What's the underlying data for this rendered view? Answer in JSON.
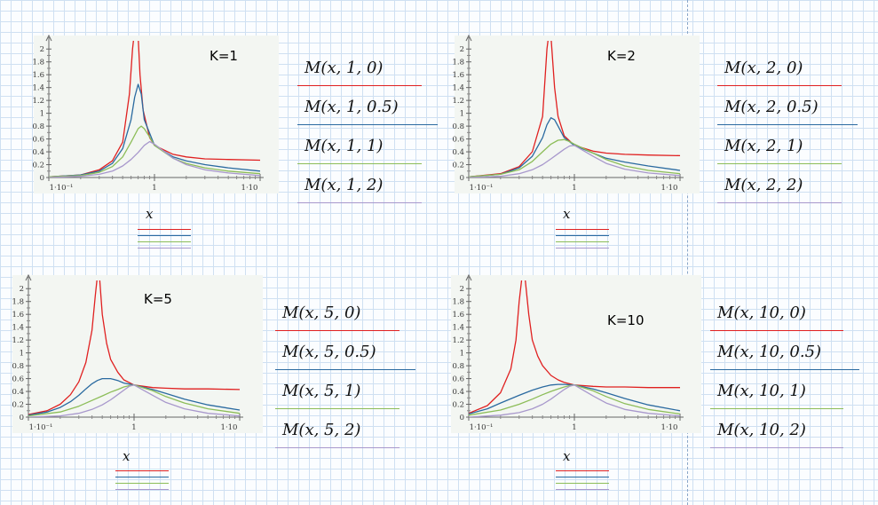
{
  "colors": {
    "red": "#e02020",
    "blue": "#2a6aa0",
    "green": "#8cbd58",
    "purple": "#a898cc"
  },
  "chart_data": [
    {
      "type": "line",
      "annotation": "K=1",
      "x_scale": "log",
      "xlim": [
        0.1,
        10
      ],
      "ylim": [
        0,
        2.1
      ],
      "x_tick_labels": [
        "1·10⁻¹",
        "1",
        "1·10"
      ],
      "y_tick_labels": [
        "0",
        "0.2",
        "0.4",
        "0.6",
        "0.8",
        "1",
        "1.2",
        "1.4",
        "1.6",
        "1.8",
        "2"
      ],
      "xlabel": "x",
      "series": [
        {
          "name": "M(x,1,0)",
          "x": [
            0.1,
            0.2,
            0.3,
            0.4,
            0.5,
            0.58,
            0.62,
            0.64,
            0.7,
            0.73,
            0.78,
            0.9,
            1.0,
            1.5,
            2,
            3,
            5,
            10
          ],
          "y": [
            0.01,
            0.04,
            0.12,
            0.26,
            0.55,
            1.3,
            2.0,
            2.2,
            2.2,
            1.6,
            1.05,
            0.62,
            0.5,
            0.36,
            0.32,
            0.29,
            0.28,
            0.27
          ]
        },
        {
          "name": "M(x,1,0.5)",
          "x": [
            0.1,
            0.2,
            0.3,
            0.4,
            0.5,
            0.6,
            0.65,
            0.7,
            0.75,
            0.8,
            1.0,
            1.5,
            2,
            3,
            5,
            10
          ],
          "y": [
            0.01,
            0.04,
            0.1,
            0.22,
            0.45,
            0.9,
            1.25,
            1.45,
            1.3,
            0.9,
            0.5,
            0.32,
            0.26,
            0.2,
            0.15,
            0.1
          ]
        },
        {
          "name": "M(x,1,1)",
          "x": [
            0.1,
            0.2,
            0.3,
            0.4,
            0.5,
            0.6,
            0.7,
            0.75,
            0.8,
            0.9,
            1.0,
            1.5,
            2,
            3,
            5,
            10
          ],
          "y": [
            0.01,
            0.03,
            0.08,
            0.17,
            0.32,
            0.55,
            0.76,
            0.8,
            0.76,
            0.63,
            0.5,
            0.3,
            0.22,
            0.15,
            0.1,
            0.06
          ]
        },
        {
          "name": "M(x,1,2)",
          "x": [
            0.1,
            0.2,
            0.3,
            0.4,
            0.5,
            0.6,
            0.7,
            0.8,
            0.9,
            1.0,
            1.5,
            2,
            3,
            5,
            10
          ],
          "y": [
            0.0,
            0.02,
            0.05,
            0.1,
            0.18,
            0.28,
            0.39,
            0.5,
            0.56,
            0.52,
            0.3,
            0.2,
            0.12,
            0.07,
            0.03
          ]
        }
      ]
    },
    {
      "type": "line",
      "annotation": "K=2",
      "x_scale": "log",
      "xlim": [
        0.1,
        10
      ],
      "ylim": [
        0,
        2.1
      ],
      "x_tick_labels": [
        "1·10⁻¹",
        "1",
        "1·10"
      ],
      "y_tick_labels": [
        "0",
        "0.2",
        "0.4",
        "0.6",
        "0.8",
        "1",
        "1.2",
        "1.4",
        "1.6",
        "1.8",
        "2"
      ],
      "xlabel": "x",
      "series": [
        {
          "name": "M(x,2,0)",
          "x": [
            0.1,
            0.2,
            0.3,
            0.4,
            0.5,
            0.55,
            0.57,
            0.6,
            0.65,
            0.7,
            0.8,
            1.0,
            1.5,
            2,
            3,
            5,
            10
          ],
          "y": [
            0.01,
            0.06,
            0.17,
            0.4,
            0.95,
            2.0,
            2.2,
            2.2,
            1.4,
            0.95,
            0.65,
            0.5,
            0.41,
            0.38,
            0.36,
            0.35,
            0.34
          ]
        },
        {
          "name": "M(x,2,0.5)",
          "x": [
            0.1,
            0.2,
            0.3,
            0.4,
            0.5,
            0.55,
            0.6,
            0.65,
            0.7,
            0.8,
            1.0,
            1.5,
            2,
            3,
            5,
            10
          ],
          "y": [
            0.01,
            0.05,
            0.15,
            0.33,
            0.62,
            0.82,
            0.93,
            0.9,
            0.8,
            0.62,
            0.5,
            0.38,
            0.3,
            0.24,
            0.18,
            0.11
          ]
        },
        {
          "name": "M(x,2,1)",
          "x": [
            0.1,
            0.2,
            0.3,
            0.4,
            0.5,
            0.6,
            0.7,
            0.8,
            0.9,
            1.0,
            1.5,
            2,
            3,
            5,
            10
          ],
          "y": [
            0.01,
            0.05,
            0.12,
            0.25,
            0.4,
            0.52,
            0.58,
            0.59,
            0.56,
            0.52,
            0.38,
            0.28,
            0.18,
            0.11,
            0.06
          ]
        },
        {
          "name": "M(x,2,2)",
          "x": [
            0.1,
            0.2,
            0.3,
            0.4,
            0.5,
            0.6,
            0.7,
            0.8,
            0.9,
            1.0,
            1.5,
            2,
            3,
            5,
            10
          ],
          "y": [
            0.0,
            0.02,
            0.06,
            0.12,
            0.2,
            0.29,
            0.37,
            0.44,
            0.49,
            0.5,
            0.33,
            0.22,
            0.13,
            0.07,
            0.03
          ]
        }
      ]
    },
    {
      "type": "line",
      "annotation": "K=5",
      "x_scale": "log",
      "xlim": [
        0.1,
        10
      ],
      "ylim": [
        0,
        2.1
      ],
      "x_tick_labels": [
        "1·10⁻¹",
        "1",
        "1·10"
      ],
      "y_tick_labels": [
        "0",
        "0.2",
        "0.4",
        "0.6",
        "0.8",
        "1",
        "1.2",
        "1.4",
        "1.6",
        "1.8",
        "2"
      ],
      "xlabel": "x",
      "series": [
        {
          "name": "M(x,5,0)",
          "x": [
            0.1,
            0.15,
            0.2,
            0.25,
            0.3,
            0.35,
            0.4,
            0.43,
            0.45,
            0.47,
            0.5,
            0.55,
            0.6,
            0.7,
            0.8,
            1.0,
            1.5,
            2,
            3,
            5,
            10
          ],
          "y": [
            0.04,
            0.1,
            0.2,
            0.35,
            0.55,
            0.85,
            1.35,
            1.9,
            2.2,
            2.2,
            1.6,
            1.15,
            0.9,
            0.7,
            0.58,
            0.5,
            0.46,
            0.45,
            0.44,
            0.44,
            0.43
          ]
        },
        {
          "name": "M(x,5,0.5)",
          "x": [
            0.1,
            0.15,
            0.2,
            0.25,
            0.3,
            0.35,
            0.4,
            0.45,
            0.5,
            0.6,
            0.7,
            0.8,
            1.0,
            1.5,
            2,
            3,
            5,
            10
          ],
          "y": [
            0.03,
            0.08,
            0.15,
            0.24,
            0.34,
            0.44,
            0.52,
            0.57,
            0.6,
            0.6,
            0.57,
            0.53,
            0.5,
            0.43,
            0.37,
            0.28,
            0.19,
            0.11
          ]
        },
        {
          "name": "M(x,5,1)",
          "x": [
            0.1,
            0.2,
            0.3,
            0.4,
            0.5,
            0.6,
            0.7,
            0.8,
            0.9,
            1.0,
            1.5,
            2,
            3,
            5,
            10
          ],
          "y": [
            0.02,
            0.08,
            0.17,
            0.26,
            0.33,
            0.39,
            0.43,
            0.47,
            0.49,
            0.5,
            0.41,
            0.32,
            0.22,
            0.13,
            0.06
          ]
        },
        {
          "name": "M(x,5,2)",
          "x": [
            0.1,
            0.2,
            0.3,
            0.4,
            0.5,
            0.6,
            0.7,
            0.8,
            0.9,
            1.0,
            1.5,
            2,
            3,
            5,
            10
          ],
          "y": [
            0.0,
            0.02,
            0.06,
            0.12,
            0.19,
            0.27,
            0.35,
            0.42,
            0.48,
            0.5,
            0.34,
            0.23,
            0.13,
            0.06,
            0.02
          ]
        }
      ]
    },
    {
      "type": "line",
      "annotation": "K=10",
      "x_scale": "log",
      "xlim": [
        0.1,
        10
      ],
      "ylim": [
        0,
        2.1
      ],
      "x_tick_labels": [
        "1·10⁻¹",
        "1",
        "1·10"
      ],
      "y_tick_labels": [
        "0",
        "0.2",
        "0.4",
        "0.6",
        "0.8",
        "1",
        "1.2",
        "1.4",
        "1.6",
        "1.8",
        "2"
      ],
      "xlabel": "x",
      "series": [
        {
          "name": "M(x,10,0)",
          "x": [
            0.1,
            0.15,
            0.2,
            0.25,
            0.28,
            0.3,
            0.32,
            0.34,
            0.37,
            0.4,
            0.45,
            0.5,
            0.6,
            0.7,
            0.8,
            1.0,
            1.5,
            2,
            3,
            5,
            10
          ],
          "y": [
            0.06,
            0.18,
            0.38,
            0.75,
            1.2,
            1.8,
            2.2,
            2.2,
            1.6,
            1.2,
            0.95,
            0.8,
            0.65,
            0.58,
            0.54,
            0.5,
            0.48,
            0.47,
            0.47,
            0.46,
            0.46
          ]
        },
        {
          "name": "M(x,10,0.5)",
          "x": [
            0.1,
            0.15,
            0.2,
            0.3,
            0.4,
            0.5,
            0.6,
            0.7,
            0.8,
            1.0,
            1.5,
            2,
            3,
            5,
            10
          ],
          "y": [
            0.05,
            0.13,
            0.22,
            0.34,
            0.42,
            0.47,
            0.5,
            0.51,
            0.51,
            0.5,
            0.44,
            0.38,
            0.29,
            0.19,
            0.1
          ]
        },
        {
          "name": "M(x,10,1)",
          "x": [
            0.1,
            0.2,
            0.3,
            0.4,
            0.5,
            0.6,
            0.7,
            0.8,
            0.9,
            1.0,
            1.5,
            2,
            3,
            5,
            10
          ],
          "y": [
            0.03,
            0.11,
            0.2,
            0.28,
            0.35,
            0.4,
            0.44,
            0.47,
            0.49,
            0.5,
            0.41,
            0.32,
            0.21,
            0.12,
            0.05
          ]
        },
        {
          "name": "M(x,10,2)",
          "x": [
            0.1,
            0.2,
            0.3,
            0.4,
            0.5,
            0.6,
            0.7,
            0.8,
            0.9,
            1.0,
            1.5,
            2,
            3,
            5,
            10
          ],
          "y": [
            0.0,
            0.03,
            0.07,
            0.13,
            0.2,
            0.28,
            0.36,
            0.43,
            0.48,
            0.5,
            0.33,
            0.22,
            0.12,
            0.06,
            0.02
          ]
        }
      ]
    }
  ]
}
